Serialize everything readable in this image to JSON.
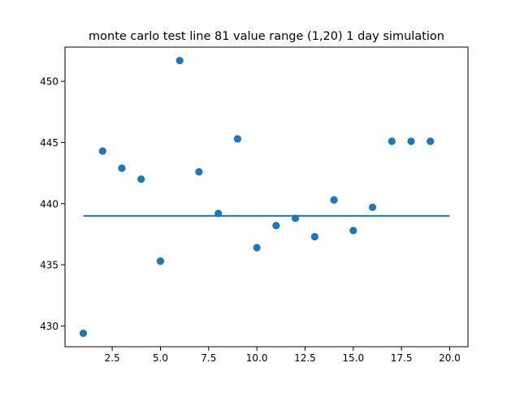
{
  "chart_data": {
    "type": "scatter",
    "title": "monte carlo test line 81 value range (1,20) 1 day simulation",
    "xlabel": "",
    "ylabel": "",
    "xlim": [
      0.05,
      20.95
    ],
    "ylim": [
      428.3,
      452.8
    ],
    "x_ticks": [
      2.5,
      5.0,
      7.5,
      10.0,
      12.5,
      15.0,
      17.5,
      20.0
    ],
    "x_tick_labels": [
      "2.5",
      "5.0",
      "7.5",
      "10.0",
      "12.5",
      "15.0",
      "17.5",
      "20.0"
    ],
    "y_ticks": [
      430,
      435,
      440,
      445,
      450
    ],
    "y_tick_labels": [
      "430",
      "435",
      "440",
      "445",
      "450"
    ],
    "grid": false,
    "colors": {
      "points": "#1f77b4",
      "line": "#1f77b4"
    },
    "series": [
      {
        "type": "scatter",
        "x": [
          1,
          2,
          3,
          4,
          5,
          6,
          7,
          8,
          9,
          10,
          11,
          12,
          13,
          14,
          15,
          16,
          17,
          18,
          19
        ],
        "y": [
          429.4,
          444.3,
          442.9,
          442.0,
          435.3,
          451.7,
          442.6,
          439.2,
          445.3,
          436.4,
          438.2,
          438.8,
          437.3,
          440.3,
          437.8,
          439.7,
          445.1,
          445.1,
          445.1
        ]
      },
      {
        "type": "line",
        "x": [
          1,
          20
        ],
        "y": [
          439.0,
          439.0
        ]
      }
    ]
  }
}
